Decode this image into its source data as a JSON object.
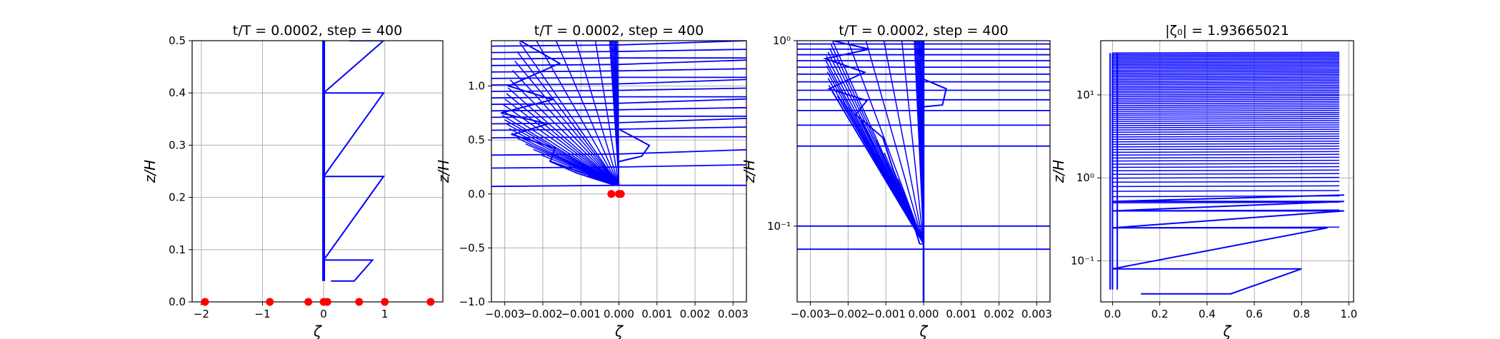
{
  "chart_data": [
    {
      "type": "line",
      "title": "t/T = 0.0002, step = 400",
      "xlabel": "ζ",
      "ylabel": "z/H",
      "xlim": [
        -2.15,
        1.95
      ],
      "ylim": [
        0,
        0.5
      ],
      "yscale": "linear",
      "grid": true,
      "xticks": [
        -2,
        -1,
        0,
        1
      ],
      "xtick_labels": [
        "−2",
        "−1",
        "0",
        "1"
      ],
      "yticks": [
        0,
        0.1,
        0.2,
        0.3,
        0.4,
        0.5
      ],
      "ytick_labels": [
        "0.0",
        "0.1",
        "0.2",
        "0.3",
        "0.4",
        "0.5"
      ],
      "series": [
        {
          "color": "#0000ff",
          "x": [
            0.0,
            0.0,
            0.0,
            0.0,
            0.0,
            0.0,
            0.0,
            0.0
          ],
          "y": [
            0.04,
            0.08,
            0.15,
            0.25,
            0.35,
            0.45,
            0.5,
            0.5
          ]
        },
        {
          "color": "#0000ff",
          "x": [
            0.12,
            0.5,
            0.8,
            0.0,
            0.98,
            0.0,
            0.98,
            0.0,
            0.98,
            0.42
          ],
          "y": [
            0.04,
            0.04,
            0.08,
            0.08,
            0.24,
            0.24,
            0.4,
            0.4,
            0.5,
            0.5
          ]
        },
        {
          "color": "#0000ff",
          "x": [
            0.0,
            0.0,
            0.0
          ],
          "y": [
            0.06,
            0.3,
            0.5
          ]
        }
      ],
      "points": {
        "color": "#ff0000",
        "x": [
          -1.94,
          -0.88,
          -0.25,
          0.0,
          0.06,
          0.58,
          1.0,
          1.75
        ],
        "y": [
          0,
          0,
          0,
          0,
          0,
          0,
          0,
          0
        ]
      }
    },
    {
      "type": "line",
      "title": "t/T = 0.0002, step = 400",
      "xlabel": "ζ",
      "ylabel": "z/H",
      "xlim": [
        -0.00335,
        0.00335
      ],
      "ylim": [
        -1.0,
        1.42
      ],
      "yscale": "linear",
      "grid": true,
      "xticks": [
        -0.003,
        -0.002,
        -0.001,
        0.0,
        0.001,
        0.002,
        0.003
      ],
      "xtick_labels": [
        "−0.003",
        "−0.002",
        "−0.001",
        "0.000",
        "0.001",
        "0.002",
        "0.003"
      ],
      "yticks": [
        -1.0,
        -0.5,
        0.0,
        0.5,
        1.0
      ],
      "ytick_labels": [
        "−1.0",
        "−0.5",
        "0.0",
        "0.5",
        "1.0"
      ],
      "fan_base": {
        "x": 0.0,
        "y": 0.08
      },
      "fan_envelope": [
        [
          -0.0001,
          1.42
        ],
        [
          -0.0026,
          1.42
        ],
        [
          -0.0029,
          1.0
        ],
        [
          -0.0031,
          0.75
        ],
        [
          -0.0028,
          0.55
        ],
        [
          -0.0018,
          0.3
        ],
        [
          -0.0001,
          0.08
        ]
      ],
      "fan_count": 30,
      "horizontal_lines_y": [
        0.08,
        0.25,
        0.37,
        0.53,
        0.6,
        0.66,
        0.72,
        0.78,
        0.84,
        0.9,
        0.96,
        1.02,
        1.08,
        1.14,
        1.2,
        1.26,
        1.32,
        1.38
      ],
      "zigzag": {
        "x": [
          0.0,
          0.0008,
          0.0006,
          0.0
        ],
        "y": [
          0.6,
          0.45,
          0.35,
          0.3
        ]
      },
      "points": {
        "color": "#ff0000",
        "x": [
          -0.0002,
          0.0,
          5e-05
        ],
        "y": [
          0,
          0,
          0
        ]
      }
    },
    {
      "type": "line",
      "title": "t/T = 0.0002, step = 400",
      "xlabel": "ζ",
      "ylabel": "z/H",
      "xlim": [
        -0.00335,
        0.00335
      ],
      "ylim": [
        0.039,
        1.0
      ],
      "yscale": "log",
      "grid": true,
      "xticks": [
        -0.003,
        -0.002,
        -0.001,
        0.0,
        0.001,
        0.002,
        0.003
      ],
      "xtick_labels": [
        "−0.003",
        "−0.002",
        "−0.001",
        "0.000",
        "0.001",
        "0.002",
        "0.003"
      ],
      "yticks": [
        0.1,
        1.0
      ],
      "ytick_labels": [
        "10⁻¹",
        "10⁰"
      ],
      "fan_base": {
        "x": 0.0,
        "y": 0.08
      },
      "fan_envelope": [
        [
          -0.0001,
          1.0
        ],
        [
          -0.0024,
          1.0
        ],
        [
          -0.0026,
          0.8
        ],
        [
          -0.0025,
          0.55
        ],
        [
          -0.0018,
          0.4
        ],
        [
          -0.0008,
          0.2
        ],
        [
          -0.0001,
          0.08
        ]
      ],
      "fan_count": 30,
      "horizontal_lines_y": [
        0.075,
        0.1,
        0.27,
        0.35,
        0.42,
        0.48,
        0.54,
        0.6,
        0.66,
        0.72,
        0.78,
        0.84,
        0.9,
        0.96
      ],
      "zigzag": {
        "x": [
          0.0,
          0.0006,
          0.0005,
          0.0
        ],
        "y": [
          0.62,
          0.55,
          0.45,
          0.44
        ]
      },
      "stem": {
        "x": [
          0.0,
          0.0,
          0.0
        ],
        "y": [
          0.039,
          0.08,
          1.0
        ]
      }
    },
    {
      "type": "line",
      "title": "|ζ₀| = 1.93665021",
      "xlabel": "ζ",
      "ylabel": "z/H",
      "xlim": [
        -0.05,
        1.02
      ],
      "ylim": [
        0.032,
        45
      ],
      "yscale": "log",
      "grid": true,
      "xticks": [
        0.0,
        0.2,
        0.4,
        0.6,
        0.8,
        1.0
      ],
      "xtick_labels": [
        "0.0",
        "0.2",
        "0.4",
        "0.6",
        "0.8",
        "1.0"
      ],
      "yticks": [
        0.1,
        1,
        10
      ],
      "ytick_labels": [
        "10⁻¹",
        "10⁰",
        "10¹"
      ],
      "band_top": 32,
      "band_bottom": 0.25,
      "band_right_x": 0.96,
      "zigzag": {
        "x": [
          0.12,
          0.5,
          0.8,
          0.0,
          0.91,
          0.0,
          0.98,
          0.0,
          0.98,
          0.0,
          0.98
        ],
        "y": [
          0.04,
          0.04,
          0.08,
          0.08,
          0.25,
          0.25,
          0.4,
          0.4,
          0.52,
          0.52,
          0.62
        ]
      },
      "left_cluster_x": [
        -0.01,
        0.0,
        0.02
      ]
    }
  ]
}
